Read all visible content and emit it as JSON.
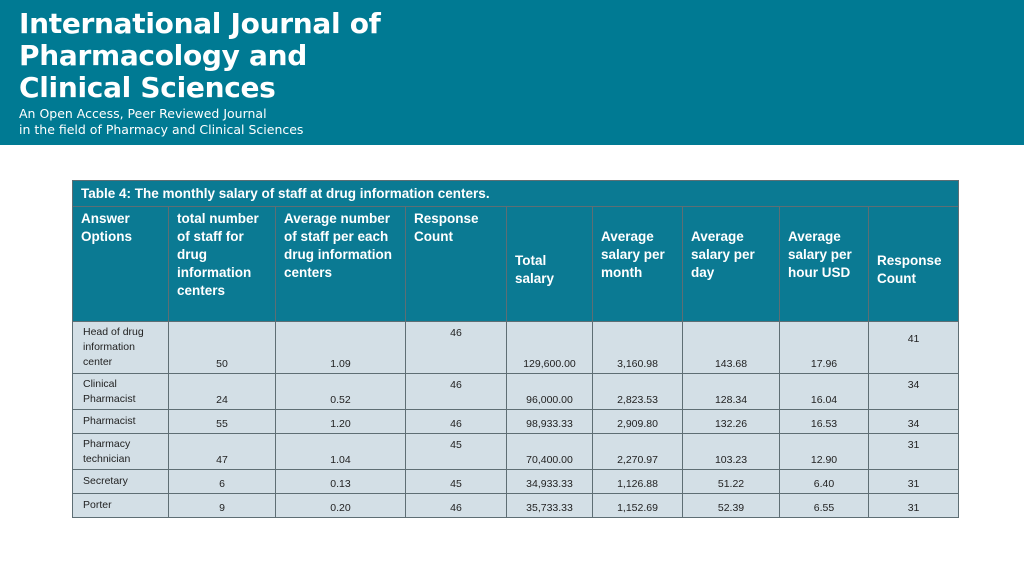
{
  "banner": {
    "title_lines": [
      "International Journal of",
      "Pharmacology and",
      "Clinical Sciences"
    ],
    "subtitle_lines": [
      "An Open Access, Peer Reviewed Journal",
      "in the field of Pharmacy and Clinical Sciences"
    ],
    "background_color": "#007a93"
  },
  "table": {
    "caption": "Table 4: The monthly salary of staff at drug information centers.",
    "headers": [
      "Answer Options",
      "total number of staff for drug information centers",
      "Average number of staff per each drug information centers",
      "Response Count",
      "Total salary",
      "Average salary per month",
      "Average salary per day",
      "Average salary per hour USD",
      "Response Count"
    ],
    "rows": [
      [
        "Head of drug information center",
        "50",
        "1.09",
        "46",
        "129,600.00",
        "3,160.98",
        "143.68",
        "17.96",
        "41"
      ],
      [
        "Clinical Pharmacist",
        "24",
        "0.52",
        "46",
        "96,000.00",
        "2,823.53",
        "128.34",
        "16.04",
        "34"
      ],
      [
        "Pharmacist",
        "55",
        "1.20",
        "46",
        "98,933.33",
        "2,909.80",
        "132.26",
        "16.53",
        "34"
      ],
      [
        "Pharmacy technician",
        "47",
        "1.04",
        "45",
        "70,400.00",
        "2,270.97",
        "103.23",
        "12.90",
        "31"
      ],
      [
        "Secretary",
        "6",
        "0.13",
        "45",
        "34,933.33",
        "1,126.88",
        "51.22",
        "6.40",
        "31"
      ],
      [
        "Porter",
        "9",
        "0.20",
        "46",
        "35,733.33",
        "1,152.69",
        "52.39",
        "6.55",
        "31"
      ]
    ],
    "header_color": "#0b7a93",
    "row_color": "#d3dfe6"
  }
}
